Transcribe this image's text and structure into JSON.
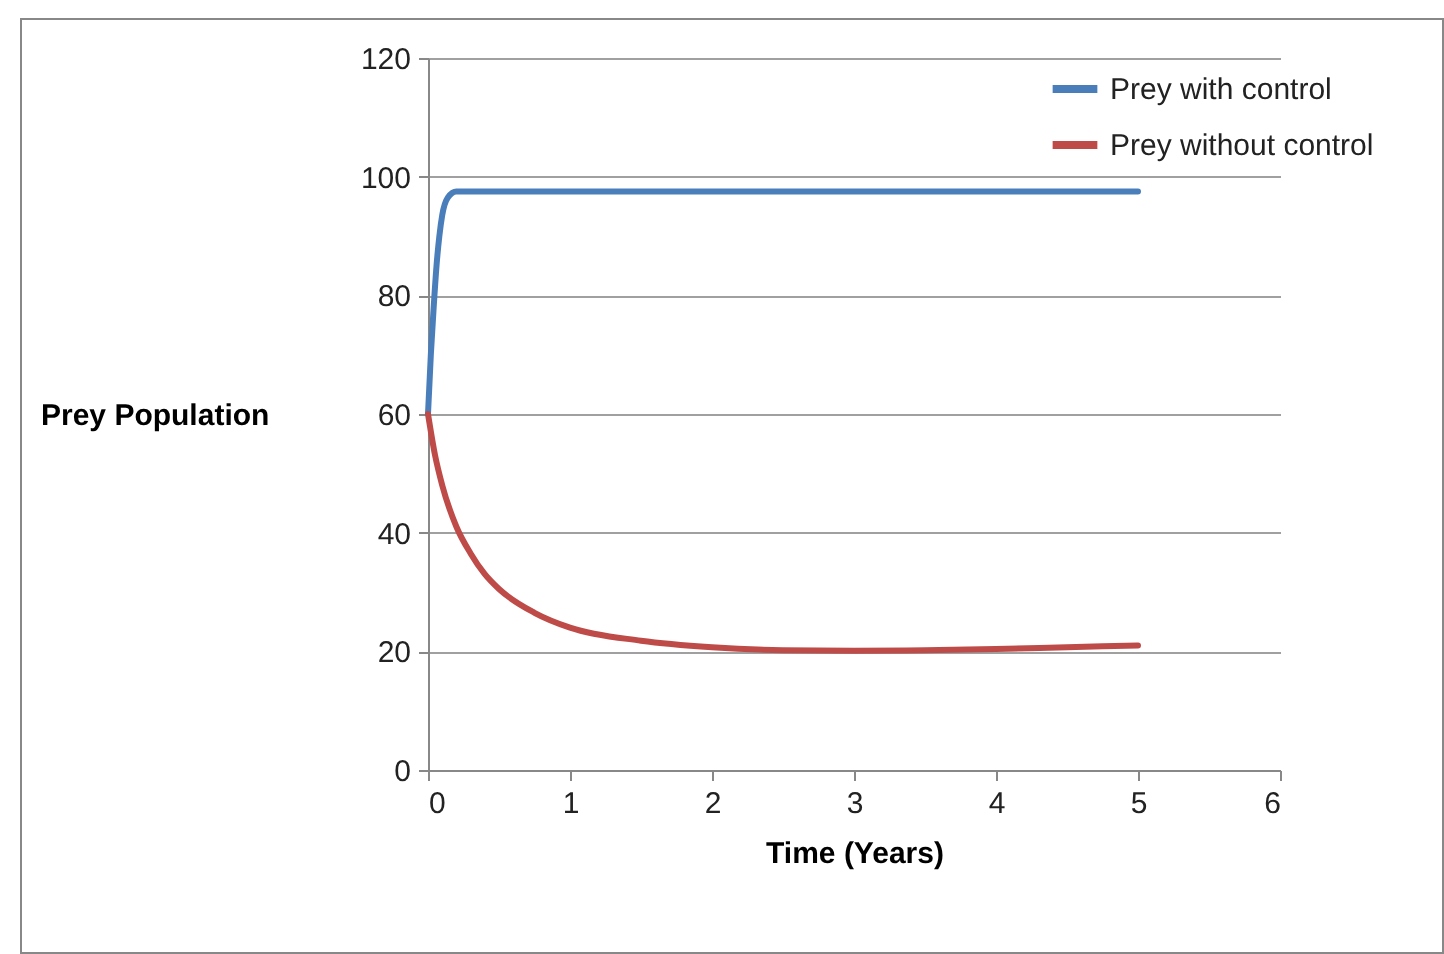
{
  "chart_data": {
    "type": "line",
    "xlabel": "Time (Years)",
    "ylabel": "Prey  Population",
    "xlim": [
      0,
      6
    ],
    "xticks": [
      0,
      1,
      2,
      3,
      4,
      5,
      6
    ],
    "ylim": [
      0,
      120
    ],
    "yticks": [
      0,
      20,
      40,
      60,
      80,
      100,
      120
    ],
    "grid": "y",
    "legend": "top right",
    "line_style": "solid",
    "marker": "none",
    "series": [
      {
        "name": "Prey with control",
        "color": "#4a7ebb",
        "x": [
          0,
          0.02,
          0.04,
          0.06,
          0.08,
          0.1,
          0.14,
          0.2,
          0.3,
          1,
          2,
          3,
          4,
          5
        ],
        "values": [
          60,
          70,
          78,
          85,
          90,
          93.5,
          96.5,
          97.5,
          97.5,
          97.5,
          97.5,
          97.5,
          97.5,
          97.5
        ]
      },
      {
        "name": "Prey without control",
        "color": "#be4b48",
        "x": [
          0,
          0.05,
          0.1,
          0.2,
          0.3,
          0.4,
          0.5,
          0.75,
          1,
          1.5,
          2,
          2.5,
          3,
          3.5,
          4,
          4.5,
          5
        ],
        "values": [
          60,
          53,
          48,
          41,
          36.5,
          33,
          30.5,
          26.5,
          24,
          21.8,
          20.7,
          20.2,
          20.1,
          20.2,
          20.4,
          20.7,
          21
        ]
      }
    ]
  }
}
